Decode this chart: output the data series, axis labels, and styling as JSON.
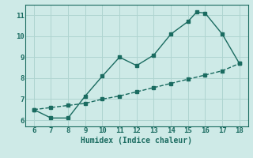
{
  "xlabel": "Humidex (Indice chaleur)",
  "bg_color": "#ceeae7",
  "grid_color": "#afd4d0",
  "line_color": "#1a6b60",
  "xlim": [
    5.5,
    18.5
  ],
  "ylim": [
    5.7,
    11.5
  ],
  "xticks": [
    6,
    7,
    8,
    9,
    10,
    11,
    12,
    13,
    14,
    15,
    16,
    17,
    18
  ],
  "yticks": [
    6,
    7,
    8,
    9,
    10,
    11
  ],
  "curve_x": [
    6,
    7,
    8,
    9,
    10,
    11,
    12,
    13,
    14,
    15,
    15.5,
    16,
    17,
    18
  ],
  "curve_y": [
    6.5,
    6.1,
    6.1,
    7.15,
    8.1,
    9.0,
    8.6,
    9.1,
    10.1,
    10.7,
    11.15,
    11.1,
    10.1,
    8.7
  ],
  "line_x": [
    6,
    7,
    8,
    9,
    10,
    11,
    12,
    13,
    14,
    15,
    16,
    17,
    18
  ],
  "line_y": [
    6.5,
    6.6,
    6.7,
    6.8,
    7.0,
    7.15,
    7.35,
    7.55,
    7.75,
    7.95,
    8.15,
    8.35,
    8.7
  ],
  "marker_size": 2.5,
  "linewidth": 1.0
}
